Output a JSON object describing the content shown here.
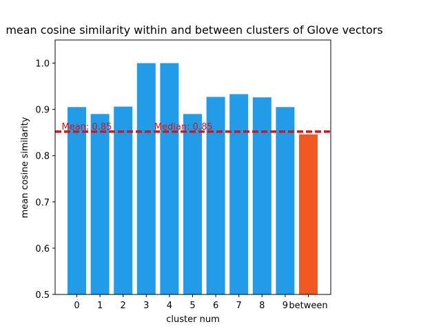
{
  "chart_data": {
    "type": "bar",
    "title": "mean cosine similarity within and between clusters of Glove vectors",
    "xlabel": "cluster num",
    "ylabel": "mean cosine similarity",
    "categories": [
      "0",
      "1",
      "2",
      "3",
      "4",
      "5",
      "6",
      "7",
      "8",
      "9",
      "between"
    ],
    "values": [
      0.905,
      0.89,
      0.906,
      1.0,
      1.0,
      0.89,
      0.927,
      0.933,
      0.926,
      0.905,
      0.846
    ],
    "bar_colors": [
      "#229ce8",
      "#229ce8",
      "#229ce8",
      "#229ce8",
      "#229ce8",
      "#229ce8",
      "#229ce8",
      "#229ce8",
      "#229ce8",
      "#229ce8",
      "#f05a22"
    ],
    "ylim": [
      0.5,
      1.05
    ],
    "yticks": [
      0.5,
      0.6,
      0.7,
      0.8,
      0.9,
      1.0
    ],
    "ytick_labels": [
      "0.5",
      "0.6",
      "0.7",
      "0.8",
      "0.9",
      "1.0"
    ],
    "grid": false,
    "reference_line": {
      "value": 0.852,
      "style": "dashed",
      "color": "#dd1111"
    },
    "annotations": [
      {
        "text": "Mean: 0.85",
        "x_category": "0",
        "y": 0.852,
        "color": "#dd1111"
      },
      {
        "text": "Median: 0.85",
        "x_category": "4",
        "y": 0.852,
        "color": "#dd1111"
      }
    ]
  }
}
